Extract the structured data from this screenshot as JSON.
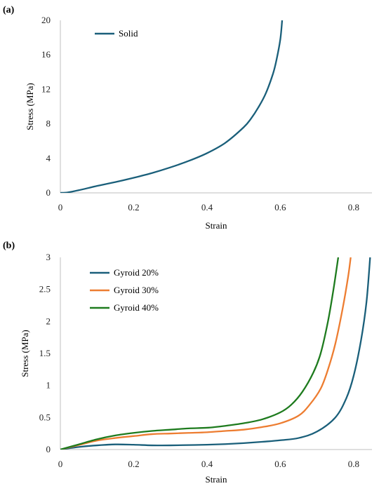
{
  "chart_data": [
    {
      "panel_label": "(a)",
      "type": "line",
      "xlabel": "Strain",
      "ylabel": "Stress (MPa)",
      "xlim": [
        0,
        0.85
      ],
      "ylim": [
        0,
        20
      ],
      "xticks": [
        "0",
        "0.2",
        "0.4",
        "0.6",
        "0.8"
      ],
      "yticks": [
        "0",
        "4",
        "8",
        "12",
        "16",
        "20"
      ],
      "grid": false,
      "legend": "top-left",
      "series": [
        {
          "name": "Solid",
          "color": "#1a5f7a",
          "points": [
            [
              0,
              0
            ],
            [
              0.02,
              0.05
            ],
            [
              0.05,
              0.3
            ],
            [
              0.1,
              0.8
            ],
            [
              0.15,
              1.25
            ],
            [
              0.2,
              1.75
            ],
            [
              0.25,
              2.3
            ],
            [
              0.3,
              2.95
            ],
            [
              0.35,
              3.7
            ],
            [
              0.4,
              4.6
            ],
            [
              0.45,
              5.8
            ],
            [
              0.5,
              7.6
            ],
            [
              0.52,
              8.6
            ],
            [
              0.54,
              9.9
            ],
            [
              0.56,
              11.5
            ],
            [
              0.58,
              13.8
            ],
            [
              0.59,
              15.5
            ],
            [
              0.6,
              17.8
            ],
            [
              0.605,
              20
            ]
          ]
        }
      ]
    },
    {
      "panel_label": "(b)",
      "type": "line",
      "xlabel": "Strain",
      "ylabel": "Stress (MPa)",
      "xlim": [
        0,
        0.85
      ],
      "ylim": [
        0,
        3
      ],
      "xticks": [
        "0",
        "0.2",
        "0.4",
        "0.6",
        "0.8"
      ],
      "yticks": [
        "0",
        "0.5",
        "1",
        "1.5",
        "2",
        "2.5",
        "3"
      ],
      "grid": false,
      "legend": "top-left",
      "series": [
        {
          "name": "Gyroid 20%",
          "color": "#1a5f7a",
          "points": [
            [
              0,
              0
            ],
            [
              0.05,
              0.04
            ],
            [
              0.1,
              0.065
            ],
            [
              0.15,
              0.08
            ],
            [
              0.2,
              0.075
            ],
            [
              0.25,
              0.065
            ],
            [
              0.3,
              0.065
            ],
            [
              0.35,
              0.07
            ],
            [
              0.4,
              0.075
            ],
            [
              0.45,
              0.085
            ],
            [
              0.5,
              0.1
            ],
            [
              0.55,
              0.12
            ],
            [
              0.6,
              0.145
            ],
            [
              0.65,
              0.18
            ],
            [
              0.7,
              0.28
            ],
            [
              0.75,
              0.5
            ],
            [
              0.78,
              0.8
            ],
            [
              0.8,
              1.15
            ],
            [
              0.82,
              1.7
            ],
            [
              0.835,
              2.3
            ],
            [
              0.845,
              3.0
            ]
          ]
        },
        {
          "name": "Gyroid 30%",
          "color": "#ed7d31",
          "points": [
            [
              0,
              0
            ],
            [
              0.05,
              0.07
            ],
            [
              0.1,
              0.14
            ],
            [
              0.15,
              0.18
            ],
            [
              0.2,
              0.21
            ],
            [
              0.25,
              0.24
            ],
            [
              0.3,
              0.25
            ],
            [
              0.35,
              0.26
            ],
            [
              0.4,
              0.27
            ],
            [
              0.45,
              0.29
            ],
            [
              0.5,
              0.31
            ],
            [
              0.55,
              0.35
            ],
            [
              0.6,
              0.41
            ],
            [
              0.65,
              0.53
            ],
            [
              0.68,
              0.7
            ],
            [
              0.71,
              0.95
            ],
            [
              0.73,
              1.25
            ],
            [
              0.75,
              1.65
            ],
            [
              0.77,
              2.2
            ],
            [
              0.785,
              2.7
            ],
            [
              0.792,
              3.0
            ]
          ]
        },
        {
          "name": "Gyroid 40%",
          "color": "#1e7b1e",
          "points": [
            [
              0,
              0
            ],
            [
              0.05,
              0.08
            ],
            [
              0.1,
              0.16
            ],
            [
              0.15,
              0.22
            ],
            [
              0.2,
              0.26
            ],
            [
              0.25,
              0.29
            ],
            [
              0.3,
              0.31
            ],
            [
              0.35,
              0.33
            ],
            [
              0.4,
              0.34
            ],
            [
              0.45,
              0.37
            ],
            [
              0.5,
              0.41
            ],
            [
              0.55,
              0.47
            ],
            [
              0.6,
              0.58
            ],
            [
              0.63,
              0.7
            ],
            [
              0.66,
              0.9
            ],
            [
              0.69,
              1.2
            ],
            [
              0.71,
              1.5
            ],
            [
              0.73,
              2.0
            ],
            [
              0.745,
              2.5
            ],
            [
              0.758,
              3.0
            ]
          ]
        }
      ]
    }
  ]
}
